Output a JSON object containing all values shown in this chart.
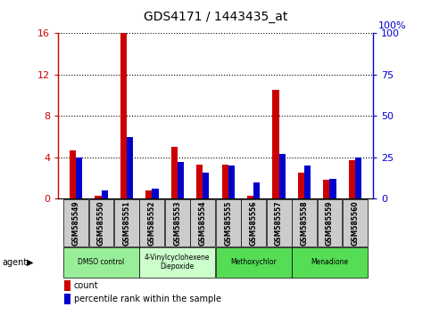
{
  "title": "GDS4171 / 1443435_at",
  "samples": [
    "GSM585549",
    "GSM585550",
    "GSM585551",
    "GSM585552",
    "GSM585553",
    "GSM585554",
    "GSM585555",
    "GSM585556",
    "GSM585557",
    "GSM585558",
    "GSM585559",
    "GSM585560"
  ],
  "count_values": [
    4.7,
    0.3,
    16.0,
    0.8,
    5.0,
    3.3,
    3.3,
    0.3,
    10.5,
    2.5,
    1.8,
    3.7
  ],
  "percentile_values": [
    25,
    5,
    37,
    6,
    22,
    16,
    20,
    10,
    27,
    20,
    12,
    25
  ],
  "ylim_left": [
    0,
    16
  ],
  "ylim_right": [
    0,
    100
  ],
  "yticks_left": [
    0,
    4,
    8,
    12,
    16
  ],
  "yticks_right": [
    0,
    25,
    50,
    75,
    100
  ],
  "count_color": "#cc0000",
  "percentile_color": "#0000cc",
  "bar_width": 0.25,
  "agent_groups": [
    {
      "label": "DMSO control",
      "start": 0,
      "end": 2,
      "color": "#99ee99"
    },
    {
      "label": "4-Vinylcyclohexene\nDiepoxide",
      "start": 3,
      "end": 5,
      "color": "#ccffcc"
    },
    {
      "label": "Methoxychlor",
      "start": 6,
      "end": 8,
      "color": "#55dd55"
    },
    {
      "label": "Menadione",
      "start": 9,
      "end": 11,
      "color": "#55dd55"
    }
  ],
  "tick_bg_color": "#cccccc",
  "legend_count": "count",
  "legend_pct": "percentile rank within the sample",
  "right_axis_label": "100%"
}
